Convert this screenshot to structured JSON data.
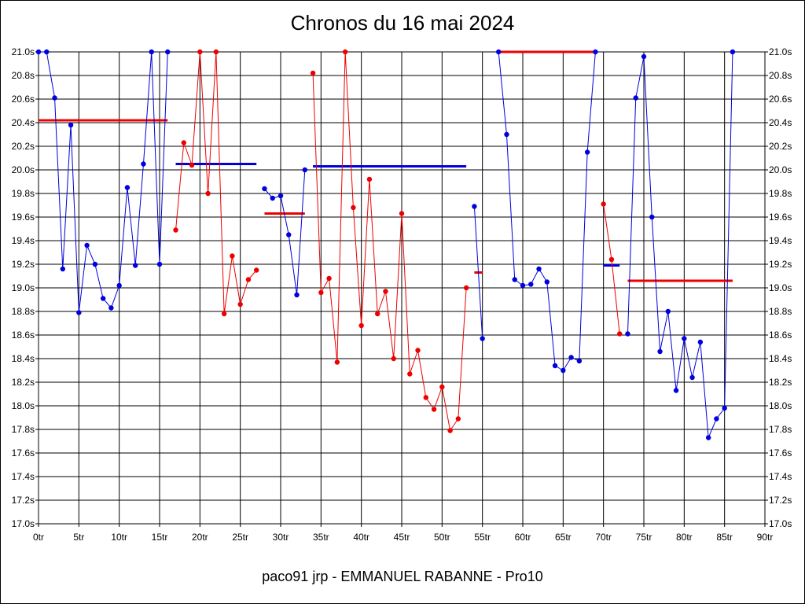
{
  "chart_data": {
    "type": "line",
    "title": "Chronos du 16 mai 2024",
    "footer": "paco91 jrp - EMMANUEL RABANNE - Pro10",
    "xlabel": "",
    "ylabel": "",
    "xlim": [
      0,
      90
    ],
    "ylim": [
      17.0,
      21.0
    ],
    "grid": true,
    "x_ticks": [
      "0tr",
      "5tr",
      "10tr",
      "15tr",
      "20tr",
      "25tr",
      "30tr",
      "35tr",
      "40tr",
      "45tr",
      "50tr",
      "55tr",
      "60tr",
      "65tr",
      "70tr",
      "75tr",
      "80tr",
      "85tr",
      "90tr"
    ],
    "y_ticks": [
      "21.0s",
      "20.8s",
      "20.6s",
      "20.4s",
      "20.2s",
      "20.0s",
      "19.8s",
      "19.6s",
      "19.4s",
      "19.2s",
      "19.0s",
      "18.8s",
      "18.6s",
      "18.4s",
      "18.2s",
      "18.0s",
      "17.8s",
      "17.6s",
      "17.4s",
      "17.2s",
      "17.0s"
    ],
    "colors": {
      "blue": "#0000dd",
      "red": "#ee0000"
    },
    "series": [
      {
        "color": "blue",
        "x": [
          0,
          1,
          2,
          3,
          4,
          5,
          6,
          7,
          8,
          9,
          10,
          11,
          12,
          13,
          14,
          15,
          16
        ],
        "y": [
          21.0,
          21.0,
          20.61,
          19.16,
          20.38,
          18.79,
          19.36,
          19.2,
          18.91,
          18.83,
          19.02,
          19.85,
          19.19,
          20.05,
          21.0,
          19.2,
          21.0
        ]
      },
      {
        "color": "red",
        "x": [
          17,
          18,
          19,
          20,
          21,
          22,
          23,
          24,
          25,
          26,
          27
        ],
        "y": [
          19.49,
          20.23,
          20.04,
          21.0,
          19.8,
          21.0,
          18.78,
          19.27,
          18.86,
          19.07,
          19.15
        ]
      },
      {
        "color": "blue",
        "x": [
          28,
          29,
          30,
          31,
          32,
          33
        ],
        "y": [
          19.84,
          19.76,
          19.78,
          19.45,
          18.94,
          20.0
        ]
      },
      {
        "color": "red",
        "x": [
          34,
          35,
          36,
          37,
          38,
          39,
          40,
          41,
          42,
          43,
          44,
          45,
          46,
          47,
          48,
          49,
          50,
          51,
          52,
          53
        ],
        "y": [
          20.82,
          18.96,
          19.08,
          18.37,
          21.0,
          19.68,
          18.68,
          19.92,
          18.78,
          18.97,
          18.4,
          19.63,
          18.27,
          18.47,
          18.07,
          17.97,
          18.16,
          17.79,
          17.89,
          19.0
        ]
      },
      {
        "color": "blue",
        "x": [
          54,
          55
        ],
        "y": [
          19.69,
          18.57
        ]
      },
      {
        "color": "blue",
        "x": [
          57,
          58,
          59,
          60,
          61,
          62,
          63,
          64,
          65,
          66,
          67,
          68,
          69
        ],
        "y": [
          21.0,
          20.3,
          19.07,
          19.02,
          19.03,
          19.16,
          19.05,
          18.34,
          18.3,
          18.41,
          18.38,
          20.15,
          21.0
        ]
      },
      {
        "color": "red",
        "x": [
          70,
          71,
          72
        ],
        "y": [
          19.71,
          19.24,
          18.61
        ]
      },
      {
        "color": "blue",
        "x": [
          73,
          74,
          75,
          76,
          77,
          78,
          79,
          80,
          81,
          82,
          83,
          84,
          85,
          86
        ],
        "y": [
          18.61,
          20.61,
          20.96,
          19.6,
          18.46,
          18.8,
          18.13,
          18.57,
          18.24,
          18.54,
          17.73,
          17.89,
          17.98,
          21.0
        ]
      }
    ],
    "average_lines": [
      {
        "color": "red",
        "x": [
          0,
          16
        ],
        "y": 20.42
      },
      {
        "color": "blue",
        "x": [
          17,
          27
        ],
        "y": 20.05
      },
      {
        "color": "red",
        "x": [
          28,
          33
        ],
        "y": 19.63
      },
      {
        "color": "blue",
        "x": [
          34,
          53
        ],
        "y": 20.03
      },
      {
        "color": "red",
        "x": [
          54,
          55
        ],
        "y": 19.13
      },
      {
        "color": "red",
        "x": [
          57,
          69
        ],
        "y": 21.0
      },
      {
        "color": "blue",
        "x": [
          70,
          72
        ],
        "y": 19.19
      },
      {
        "color": "red",
        "x": [
          73,
          86
        ],
        "y": 19.06
      }
    ]
  }
}
